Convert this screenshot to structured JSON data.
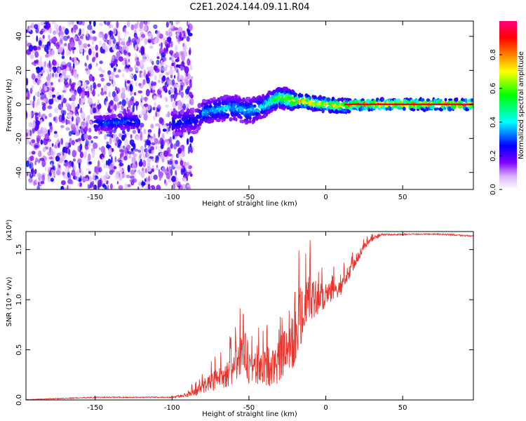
{
  "title": "C2E1.2024.144.09.11.R04",
  "chart_data": [
    {
      "type": "heatmap",
      "xlabel": "Height of straight line (km)",
      "ylabel": "Frequency (Hz)",
      "xlim": [
        -195,
        96
      ],
      "ylim": [
        -50,
        49
      ],
      "x_ticks": [
        -150,
        -100,
        -50,
        0,
        50
      ],
      "y_ticks": [
        -40,
        -20,
        0,
        20,
        40
      ],
      "grid": false,
      "colorbar": {
        "label": "Normalized spectral amplitude",
        "range": [
          0,
          1
        ],
        "ticks": [
          0.0,
          0.2,
          0.4,
          0.6,
          0.8
        ],
        "colormap": [
          "#ffffff",
          "#8000ff",
          "#0000ff",
          "#00ffff",
          "#00ff00",
          "#ffff00",
          "#ff8000",
          "#ff0000",
          "#ff0080"
        ]
      },
      "ridge": {
        "description_points_x": [
          -150,
          -140,
          -130,
          -125,
          -100,
          -95,
          -90,
          -85,
          -80,
          -70,
          -60,
          -50,
          -40,
          -35,
          -30,
          -25,
          -20,
          -15,
          -10,
          0,
          10,
          20,
          40,
          60,
          96
        ],
        "description_points_y": [
          -11,
          -11,
          -10,
          -10,
          -11,
          -11,
          -9,
          -10,
          -5,
          -3,
          -2,
          -4,
          -1,
          2,
          4,
          3,
          2,
          2,
          1,
          0,
          -1,
          0,
          0,
          0,
          0
        ]
      }
    },
    {
      "type": "line",
      "xlabel": "Height of straight line (km)",
      "ylabel": "SNR (10 * v/v)",
      "y_multiplier": "(x10⁴)",
      "xlim": [
        -195,
        96
      ],
      "ylim": [
        0,
        1.68
      ],
      "x_ticks": [
        -150,
        -100,
        -50,
        0,
        50
      ],
      "y_ticks": [
        0.0,
        0.5,
        1.0,
        1.5
      ],
      "series_color": "#e8342c",
      "envelope_x": [
        -195,
        -150,
        -100,
        -90,
        -80,
        -70,
        -60,
        -55,
        -50,
        -40,
        -30,
        -25,
        -20,
        -15,
        -10,
        0,
        5,
        10,
        15,
        20,
        25,
        30,
        35,
        40,
        50,
        60,
        70,
        80,
        96
      ],
      "envelope_base": [
        0.0,
        0.02,
        0.02,
        0.03,
        0.05,
        0.1,
        0.15,
        0.2,
        0.15,
        0.12,
        0.15,
        0.2,
        0.35,
        0.6,
        0.8,
        0.9,
        0.95,
        1.05,
        1.2,
        1.35,
        1.5,
        1.58,
        1.62,
        1.63,
        1.63,
        1.64,
        1.64,
        1.63,
        1.62
      ],
      "envelope_peak": [
        0.01,
        0.04,
        0.04,
        0.1,
        0.3,
        0.5,
        0.7,
        1.0,
        0.7,
        0.75,
        1.0,
        1.2,
        1.68,
        1.55,
        1.6,
        1.3,
        1.35,
        1.35,
        1.45,
        1.55,
        1.62,
        1.66,
        1.66,
        1.66,
        1.66,
        1.66,
        1.66,
        1.66,
        1.64
      ]
    }
  ]
}
